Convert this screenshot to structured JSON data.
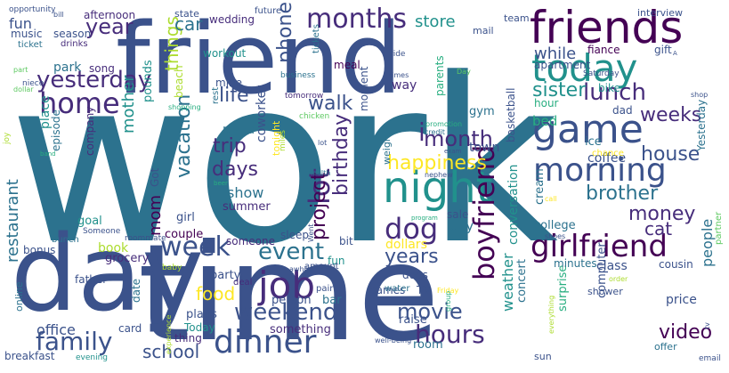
{
  "cloud": {
    "background": "#ffffff",
    "palette": [
      "#3b528b",
      "#2c728e",
      "#21918c",
      "#28ae80",
      "#5ec962",
      "#addc30",
      "#fde725",
      "#472d7b",
      "#440154"
    ],
    "words": [
      "work",
      "time",
      "day",
      "friend",
      "friends",
      "today",
      "game",
      "night",
      "dinner",
      "job",
      "morning",
      "family",
      "home",
      "girlfriend",
      "months",
      "yesterday",
      "boyfriend",
      "week",
      "weekend",
      "lunch",
      "year",
      "lot",
      "hours",
      "dog",
      "event",
      "project",
      "birthday",
      "month",
      "house",
      "money",
      "weeks",
      "years",
      "sister",
      "video",
      "movie",
      "life",
      "trip",
      "days",
      "brother",
      "happiness",
      "things",
      "vacation",
      "restaurant",
      "mom",
      "mother",
      "walk",
      "phone",
      "cat",
      "school",
      "food",
      "store",
      "car",
      "show",
      "while",
      "people",
      "weather",
      "fun",
      "i",
      "coworker",
      "pizza",
      "summer",
      "office",
      "sale",
      "dollars",
      "conversation",
      "college",
      "concert",
      "surprise",
      "computer",
      "city",
      "town",
      "gym",
      "bed",
      "coffee",
      "ice",
      "cream",
      "something",
      "person",
      "bar",
      "plans",
      "Today",
      "thing",
      "girl",
      "couple",
      "book",
      "bonus",
      "father",
      "breakfast",
      "party",
      "goal",
      "park",
      "song",
      "music",
      "season",
      "workout",
      "wedding",
      "mine",
      "beach",
      "meal",
      "moment",
      "way",
      "parents",
      "fiance",
      "apartment",
      "hour",
      "dad",
      "bike",
      "gift",
      "team",
      "mail",
      "interview",
      "afternoon",
      "state",
      "tickets",
      "drinks",
      "ticket",
      "episode",
      "place",
      "company",
      "grocery",
      "bunch",
      "online",
      "card",
      "date",
      "games",
      "TV",
      "dogs",
      "raise",
      "room",
      "class",
      "cousin",
      "minutes",
      "price",
      "shower",
      "offer",
      "sun",
      "Yesterday",
      "chance",
      "weight",
      "pounds",
      "basketball",
      "Got",
      "rest",
      "sleep",
      "Someone",
      "someone",
      "bit",
      "fun",
      "deal",
      "pair",
      "water",
      "amount",
      "Saturday",
      "tomorrow",
      "future",
      "ride",
      "business",
      "times",
      "Day",
      "promotion",
      "credit",
      "nephew",
      "program",
      "email",
      "partner",
      "order",
      "opportunity",
      "bill",
      "niece",
      "part",
      "dollar",
      "health",
      "chicken",
      "miles",
      "tonight",
      "baby",
      "roommate",
      "shoes",
      "Friday",
      "shopping",
      "experience",
      "group",
      "evening",
      "well-being",
      "everything",
      "Went",
      "awhile",
      "beer",
      "band",
      "exam",
      "call",
      "lot",
      "shop",
      "A",
      "joy",
      "tv"
    ]
  }
}
